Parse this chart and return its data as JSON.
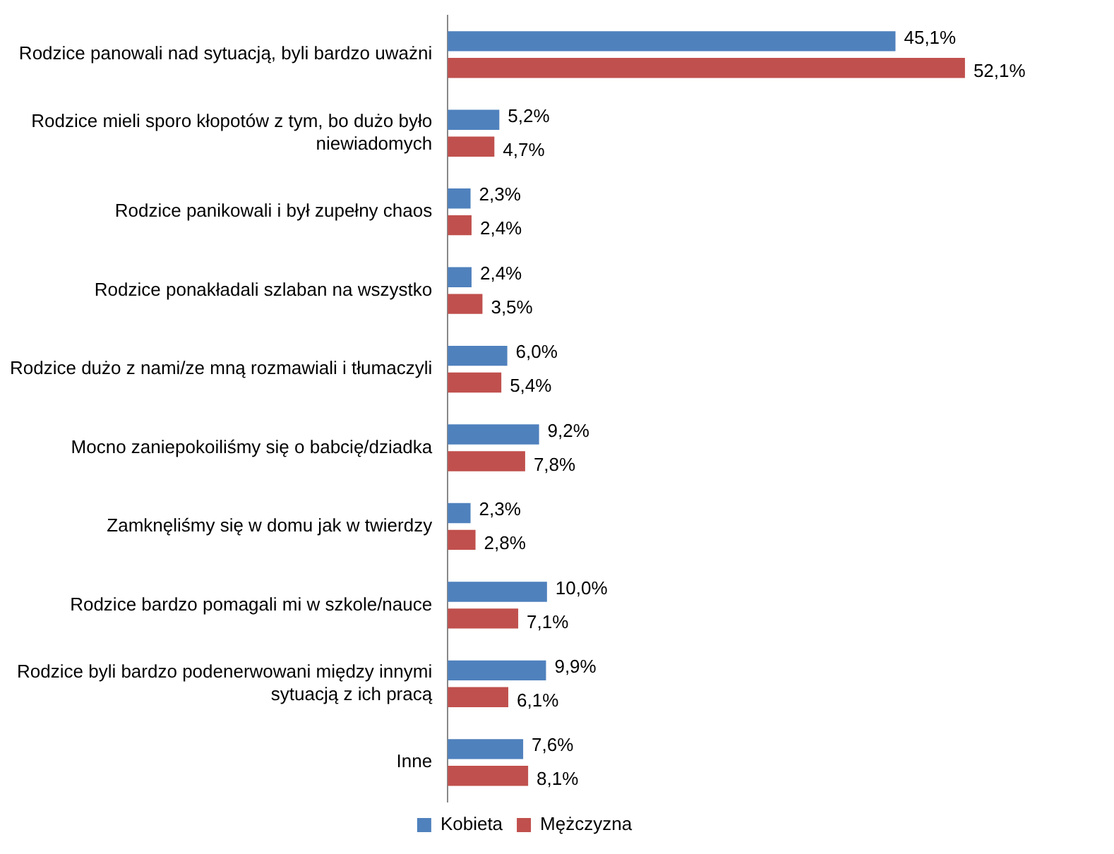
{
  "chart_data": {
    "type": "bar",
    "orientation": "horizontal",
    "categories": [
      "Rodzice panowali nad sytuacją, byli bardzo uważni",
      "Rodzice mieli sporo kłopotów z tym, bo dużo było niewiadomych",
      "Rodzice panikowali i był zupełny chaos",
      "Rodzice ponakładali szlaban na wszystko",
      "Rodzice dużo z nami/ze mną rozmawiali i tłumaczyli",
      "Mocno zaniepokoiliśmy się o babcię/dziadka",
      "Zamknęliśmy się w domu jak w twierdzy",
      "Rodzice bardzo pomagali mi w szkole/nauce",
      "Rodzice byli bardzo podenerwowani między innymi sytuacją z ich pracą",
      "Inne"
    ],
    "series": [
      {
        "name": "Kobieta",
        "color": "#4f81bd",
        "values": [
          45.1,
          5.2,
          2.3,
          2.4,
          6.0,
          9.2,
          2.3,
          10.0,
          9.9,
          7.6
        ],
        "value_labels": [
          "45,1%",
          "5,2%",
          "2,3%",
          "2,4%",
          "6,0%",
          "9,2%",
          "2,3%",
          "10,0%",
          "9,9%",
          "7,6%"
        ]
      },
      {
        "name": "Mężczyzna",
        "color": "#c0504d",
        "values": [
          52.1,
          4.7,
          2.4,
          3.5,
          5.4,
          7.8,
          2.8,
          7.1,
          6.1,
          8.1
        ],
        "value_labels": [
          "52,1%",
          "4,7%",
          "2,4%",
          "3,5%",
          "5,4%",
          "7,8%",
          "2,8%",
          "7,1%",
          "6,1%",
          "8,1%"
        ]
      }
    ],
    "tick_labels": "y",
    "legend": "bottom"
  }
}
